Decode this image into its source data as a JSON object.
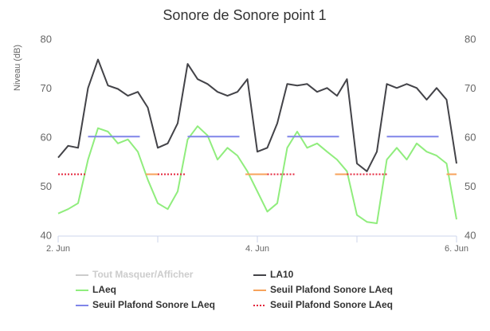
{
  "chart_data": {
    "type": "line",
    "title": "Sonore de Sonore point 1",
    "y_label": "Niveau (dB)",
    "legend_toggle": "Tout Masquer/Afficher",
    "x": [
      2.0,
      2.1,
      2.2,
      2.3,
      2.4,
      2.5,
      2.6,
      2.7,
      2.8,
      2.9,
      3.0,
      3.1,
      3.2,
      3.3,
      3.4,
      3.5,
      3.6,
      3.7,
      3.8,
      3.9,
      4.0,
      4.1,
      4.2,
      4.3,
      4.4,
      4.5,
      4.6,
      4.7,
      4.8,
      4.9,
      5.0,
      5.1,
      5.2,
      5.3,
      5.4,
      5.5,
      5.6,
      5.7,
      5.8,
      5.9,
      6.0
    ],
    "xlim": [
      2,
      6
    ],
    "xticks": [
      {
        "value": 2,
        "label": "2. Jun"
      },
      {
        "value": 4,
        "label": "4. Jun"
      },
      {
        "value": 6,
        "label": "6. Jun"
      }
    ],
    "xminor_ticks": [
      3,
      5
    ],
    "ylim": [
      40,
      80
    ],
    "yticks": [
      40,
      50,
      60,
      70,
      80
    ],
    "mirror_y_axis": true,
    "series": [
      {
        "name": "LA10",
        "color": "#434348",
        "values": [
          56,
          58.4,
          58,
          70.2,
          76,
          70.7,
          70,
          68.6,
          69.4,
          66.2,
          58,
          58.9,
          63,
          75.1,
          72,
          71,
          69.4,
          68.6,
          69.4,
          72,
          57.2,
          58,
          63,
          71,
          70.7,
          71,
          69.4,
          70.2,
          68.6,
          72,
          54.8,
          53.2,
          57.2,
          71,
          70.2,
          71,
          70.2,
          67.8,
          70.2,
          67.8,
          54.8
        ]
      },
      {
        "name": "LAeq",
        "color": "#90ed7d",
        "values": [
          44.6,
          45.5,
          46.7,
          55.6,
          62,
          61.3,
          58.9,
          59.7,
          57.2,
          51.5,
          46.7,
          45.5,
          49.1,
          59.7,
          62.4,
          60.5,
          55.6,
          58,
          56.4,
          53.2,
          49.1,
          45,
          46.7,
          58,
          61.3,
          58,
          58.9,
          57.2,
          55.6,
          53.2,
          44.3,
          42.9,
          42.6,
          55.6,
          58,
          55.6,
          58.9,
          57.2,
          56.4,
          54.8,
          43.4
        ]
      },
      {
        "name": "Seuil Plafond Sonore LAeq",
        "color": "#f7a35c",
        "x": [
          2.88,
          3.0,
          3.01,
          3.88,
          4.1,
          4.11,
          4.78,
          4.9,
          4.91,
          5.9,
          6.0
        ],
        "values": [
          52.6,
          52.6,
          null,
          52.6,
          52.6,
          null,
          52.6,
          52.6,
          null,
          52.6,
          52.6
        ]
      },
      {
        "name": "Seuil Plafond Sonore LAeq",
        "color": "#8085e9",
        "x": [
          2.3,
          2.82,
          2.83,
          3.3,
          3.82,
          3.83,
          4.3,
          4.82,
          4.83,
          5.3,
          5.82
        ],
        "values": [
          60.3,
          60.3,
          null,
          60.3,
          60.3,
          null,
          60.3,
          60.3,
          null,
          60.3,
          60.3
        ]
      },
      {
        "name": "Seuil Plafond Sonore LAeq",
        "color": "#e4263c",
        "dashed": true,
        "x": [
          2.0,
          2.28,
          2.29,
          3.0,
          3.28,
          3.29,
          4.1,
          4.38,
          4.39,
          4.9,
          5.3
        ],
        "values": [
          52.6,
          52.6,
          null,
          52.6,
          52.6,
          null,
          52.6,
          52.6,
          null,
          52.6,
          52.6
        ]
      }
    ]
  }
}
